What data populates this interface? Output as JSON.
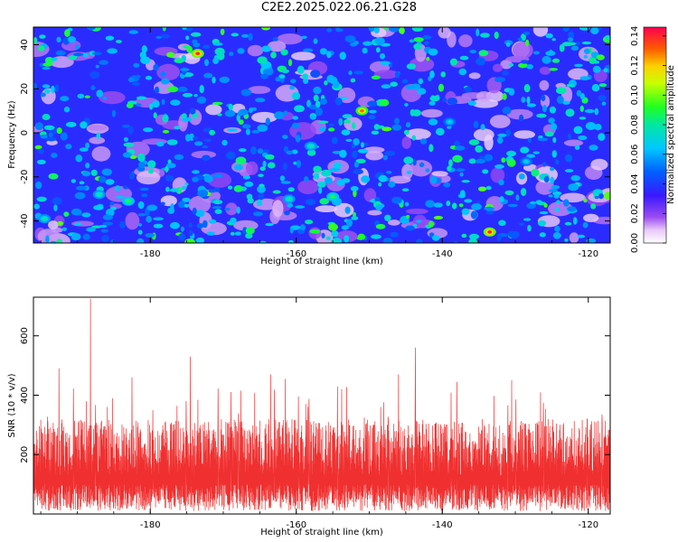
{
  "title": "C2E2.2025.022.06.21.G28",
  "chart_data": [
    {
      "type": "heatmap",
      "xlabel": "Height of straight line (km)",
      "ylabel": "Frequency (Hz)",
      "xlim": [
        -196,
        -117
      ],
      "ylim": [
        -50,
        48
      ],
      "xticks": [
        "-180",
        "-160",
        "-140",
        "-120"
      ],
      "yticks": [
        "-40",
        "-20",
        "0",
        "20",
        "40"
      ],
      "colorbar": {
        "label": "Normalized spectral amplitude",
        "range": [
          0,
          0.146
        ],
        "ticks": [
          "0.00",
          "0.02",
          "0.04",
          "0.06",
          "0.08",
          "0.10",
          "0.12",
          "0.14"
        ]
      },
      "hotspots": [
        {
          "x": -173.5,
          "y": 36,
          "value": 0.14
        },
        {
          "x": -151,
          "y": 10,
          "value": 0.13
        },
        {
          "x": -133.5,
          "y": -45,
          "value": 0.14
        },
        {
          "x": -183,
          "y": -31,
          "value": 0.09
        },
        {
          "x": -187,
          "y": -28,
          "value": 0.08
        },
        {
          "x": -194.5,
          "y": -39,
          "value": 0.08
        },
        {
          "x": -155,
          "y": -29,
          "value": 0.09
        },
        {
          "x": -161,
          "y": -30,
          "value": 0.08
        },
        {
          "x": -158,
          "y": -6,
          "value": 0.08
        },
        {
          "x": -139,
          "y": 5,
          "value": 0.07
        },
        {
          "x": -128.5,
          "y": -13,
          "value": 0.07
        }
      ],
      "grid": false
    },
    {
      "type": "line",
      "xlabel": "Height of straight line (km)",
      "ylabel": "SNR (10 * v/v)",
      "xlim": [
        -196,
        -117
      ],
      "ylim": [
        0,
        730
      ],
      "xticks": [
        "-180",
        "-160",
        "-140",
        "-120"
      ],
      "yticks": [
        "200",
        "400",
        "600"
      ],
      "color": "#f03030",
      "typical_range": [
        10,
        320
      ],
      "peaks": [
        {
          "x": -188.2,
          "y": 725
        },
        {
          "x": -174.5,
          "y": 530
        },
        {
          "x": -143.7,
          "y": 560
        },
        {
          "x": -163.5,
          "y": 470
        },
        {
          "x": -192.5,
          "y": 490
        },
        {
          "x": -146,
          "y": 470
        },
        {
          "x": -161.5,
          "y": 455
        },
        {
          "x": -182.5,
          "y": 460
        },
        {
          "x": -138,
          "y": 445
        },
        {
          "x": -130.5,
          "y": 450
        }
      ],
      "grid": false
    }
  ]
}
